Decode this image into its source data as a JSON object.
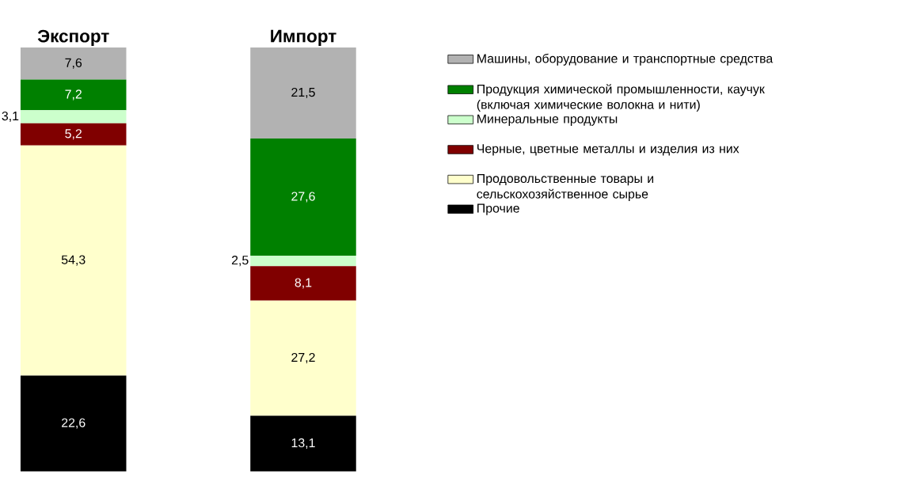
{
  "chart_data": {
    "type": "bar",
    "stacked": true,
    "categories": [
      "Экспорт",
      "Импорт"
    ],
    "legend": "right",
    "data_labels": true,
    "series": [
      {
        "name": "Прочие",
        "color": "#000000",
        "values": [
          22.6,
          13.1
        ],
        "value_labels": [
          "22,6",
          "13,1"
        ]
      },
      {
        "name": "Продовольственные товары и сельскохозяйственное сырье",
        "color": "#ffffcc",
        "values": [
          54.3,
          27.2
        ],
        "value_labels": [
          "54,3",
          "27,2"
        ]
      },
      {
        "name": "Черные, цветные металлы и изделия из них",
        "color": "#800000",
        "values": [
          5.2,
          8.1
        ],
        "value_labels": [
          "5,2",
          "8,1"
        ]
      },
      {
        "name": "Минеральные продукты",
        "color": "#ccffcc",
        "values": [
          3.1,
          2.5
        ],
        "value_labels": [
          "3,1",
          "2,5"
        ]
      },
      {
        "name": "Продукция химической промышленности, каучук (включая химические волокна и нити)",
        "color": "#008000",
        "values": [
          7.2,
          27.6
        ],
        "value_labels": [
          "7,2",
          "27,6"
        ]
      },
      {
        "name": "Машины, оборудование и транспортные средства",
        "color": "#b2b2b2",
        "values": [
          7.6,
          21.5
        ],
        "value_labels": [
          "7,6",
          "21,5"
        ]
      }
    ]
  }
}
